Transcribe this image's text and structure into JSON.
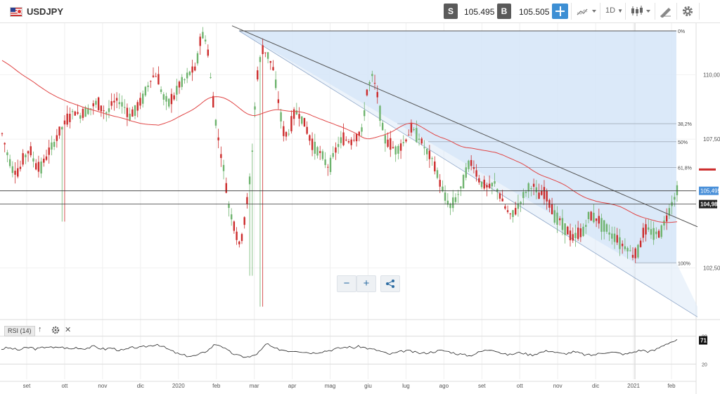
{
  "header": {
    "symbol": "USDJPY",
    "sell_label": "S",
    "sell_price": "105.495",
    "buy_label": "B",
    "buy_price": "105.505",
    "timeframe": "1D",
    "icons": [
      "flag-icon",
      "crosshair-icon",
      "chart-type-icon",
      "candlestick-icon",
      "drawing-tools-icon",
      "gear-icon"
    ]
  },
  "zoom": {
    "minus_label": "−",
    "plus_label": "+",
    "icons": [
      "zoom-out-icon",
      "zoom-in-icon",
      "share-icon"
    ]
  },
  "rsi": {
    "label": "RSI (14)",
    "level_high": "80",
    "level_low": "20",
    "current": "71",
    "icons": [
      "move-up-icon",
      "gear-icon",
      "close-icon"
    ]
  },
  "colors": {
    "up": "#6db36d",
    "down": "#cc2b2b",
    "ma": "#e04545",
    "fib": "#d5e5f8",
    "accent": "#3d8fd4",
    "price_tag": "#4a90d9"
  },
  "chart_data": {
    "type": "candlestick",
    "instrument": "USDJPY",
    "timeframe": "1D",
    "x_labels": [
      "set",
      "ott",
      "nov",
      "dic",
      "2020",
      "feb",
      "mar",
      "apr",
      "mag",
      "giu",
      "lug",
      "ago",
      "set",
      "ott",
      "nov",
      "dic",
      "2021",
      "feb"
    ],
    "y_ticks": [
      "110,00",
      "107,50",
      "102,50"
    ],
    "y_range": [
      100.5,
      112.0
    ],
    "current_price": "105,495",
    "horizontal_line_label": "104,98",
    "fibonacci": [
      {
        "label": "0%",
        "price": 111.7
      },
      {
        "label": "38,2%",
        "price": 108.1
      },
      {
        "label": "50%",
        "price": 107.4
      },
      {
        "label": "61,8%",
        "price": 106.4
      },
      {
        "label": "100%",
        "price": 102.7
      }
    ],
    "close_path": [
      107.7,
      106.9,
      106.3,
      106.2,
      106.8,
      107.1,
      106.5,
      106.4,
      106.8,
      107.2,
      107.6,
      108.0,
      108.3,
      108.6,
      108.4,
      108.6,
      108.7,
      108.9,
      108.7,
      108.5,
      108.9,
      109.0,
      108.8,
      108.4,
      108.6,
      108.9,
      109.4,
      109.9,
      110.0,
      109.2,
      108.9,
      109.1,
      109.6,
      109.8,
      110.1,
      110.2,
      111.6,
      111.3,
      109.2,
      107.6,
      106.4,
      104.9,
      104.1,
      103.3,
      104.6,
      106.3,
      109.8,
      111.0,
      110.8,
      110.2,
      108.9,
      107.6,
      107.8,
      108.6,
      108.4,
      107.9,
      107.3,
      107.1,
      106.8,
      106.4,
      106.9,
      107.4,
      107.5,
      107.4,
      107.6,
      107.8,
      109.4,
      110.0,
      109.0,
      107.6,
      107.3,
      107.1,
      107.2,
      107.5,
      107.9,
      107.7,
      107.3,
      106.9,
      106.6,
      105.9,
      105.3,
      104.9,
      105.2,
      105.6,
      106.4,
      106.6,
      106.0,
      105.7,
      105.6,
      105.8,
      105.3,
      104.8,
      104.5,
      104.8,
      105.2,
      105.6,
      105.7,
      105.3,
      105.4,
      105.0,
      104.5,
      104.3,
      104.0,
      103.6,
      103.8,
      103.9,
      104.5,
      104.5,
      104.3,
      104.1,
      103.8,
      103.7,
      103.4,
      103.3,
      103.0,
      103.2,
      103.9,
      104.0,
      103.8,
      103.9,
      104.4,
      105.0,
      105.5
    ],
    "rsi_path": [
      52,
      55,
      53,
      50,
      54,
      56,
      52,
      55,
      58,
      54,
      57,
      55,
      52,
      56,
      53,
      55,
      58,
      54,
      52,
      55,
      51,
      49,
      53,
      56,
      55,
      58,
      60,
      63,
      57,
      51,
      45,
      40,
      38,
      37,
      39,
      45,
      52,
      63,
      60,
      50,
      43,
      38,
      36,
      35,
      40,
      50,
      65,
      54,
      52,
      50,
      48,
      49,
      47,
      45,
      44,
      46,
      48,
      50,
      53,
      55,
      57,
      55,
      58,
      55,
      52,
      50,
      46,
      41,
      43,
      46,
      49,
      47,
      44,
      43,
      45,
      47,
      49,
      48,
      45,
      42,
      40,
      38,
      42,
      47,
      50,
      52,
      47,
      41,
      40,
      43,
      45,
      41,
      40,
      44,
      47,
      49,
      45,
      42,
      43,
      46,
      44,
      40,
      39,
      41,
      44,
      46,
      45,
      43,
      41,
      44,
      48,
      50,
      47,
      49,
      56,
      63,
      68,
      71
    ]
  }
}
